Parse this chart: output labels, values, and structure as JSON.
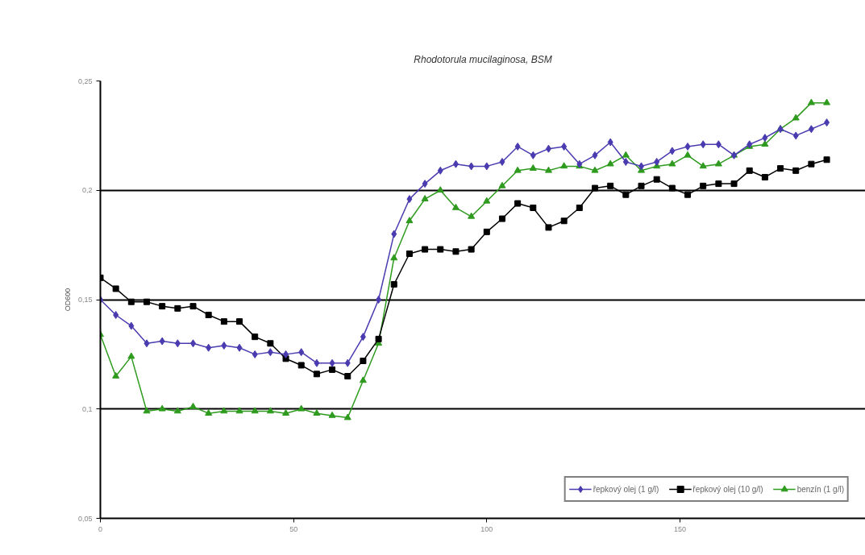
{
  "chart_data": {
    "type": "line",
    "title": "Rhodotorula mucilaginosa, BSM",
    "ylabel": "OD600",
    "x": [
      0,
      4,
      8,
      12,
      16,
      20,
      24,
      28,
      32,
      36,
      40,
      44,
      48,
      52,
      56,
      60,
      64,
      68,
      72,
      76,
      80,
      84,
      88,
      92,
      96,
      100,
      104,
      108,
      112,
      116,
      120,
      124,
      128,
      132,
      136,
      140,
      144,
      148,
      152,
      156,
      160,
      164,
      168,
      172,
      176,
      180,
      184,
      188
    ],
    "series": [
      {
        "name": "řepkový olej (1 g/l)",
        "color": "#4a3cb0",
        "marker": "diamond",
        "values": [
          0.15,
          0.143,
          0.138,
          0.13,
          0.131,
          0.13,
          0.13,
          0.128,
          0.129,
          0.128,
          0.125,
          0.126,
          0.125,
          0.126,
          0.121,
          0.121,
          0.121,
          0.133,
          0.15,
          0.18,
          0.196,
          0.203,
          0.209,
          0.212,
          0.211,
          0.211,
          0.213,
          0.22,
          0.216,
          0.219,
          0.22,
          0.212,
          0.216,
          0.222,
          0.213,
          0.211,
          0.213,
          0.218,
          0.22,
          0.221,
          0.221,
          0.216,
          0.221,
          0.224,
          0.228,
          0.225,
          0.228,
          0.231
        ]
      },
      {
        "name": "řepkový olej (10 g/l)",
        "color": "#000000",
        "marker": "square",
        "values": [
          0.16,
          0.155,
          0.149,
          0.149,
          0.147,
          0.146,
          0.147,
          0.143,
          0.14,
          0.14,
          0.133,
          0.13,
          0.123,
          0.12,
          0.116,
          0.118,
          0.115,
          0.122,
          0.132,
          0.157,
          0.171,
          0.173,
          0.173,
          0.172,
          0.173,
          0.181,
          0.187,
          0.194,
          0.192,
          0.183,
          0.186,
          0.192,
          0.201,
          0.202,
          0.198,
          0.202,
          0.205,
          0.201,
          0.198,
          0.202,
          0.203,
          0.203,
          0.209,
          0.206,
          0.21,
          0.209,
          0.212,
          0.214
        ]
      },
      {
        "name": "benzín (1 g/l)",
        "color": "#2e9a1e",
        "marker": "triangle",
        "values": [
          0.134,
          0.115,
          0.124,
          0.099,
          0.1,
          0.099,
          0.101,
          0.098,
          0.099,
          0.099,
          0.099,
          0.099,
          0.098,
          0.1,
          0.098,
          0.097,
          0.096,
          0.113,
          0.13,
          0.169,
          0.186,
          0.196,
          0.2,
          0.192,
          0.188,
          0.195,
          0.202,
          0.209,
          0.21,
          0.209,
          0.211,
          0.211,
          0.209,
          0.212,
          0.216,
          0.209,
          0.211,
          0.212,
          0.216,
          0.211,
          0.212,
          0.216,
          0.22,
          0.221,
          0.228,
          0.233,
          0.24,
          0.24
        ]
      }
    ],
    "xlim": [
      0,
      198
    ],
    "xticks": [
      0,
      50,
      100,
      150
    ],
    "ylim": [
      0.05,
      0.25
    ],
    "yticks": [
      {
        "value": 0.05,
        "label": "0,05"
      },
      {
        "value": 0.1,
        "label": "0,1"
      },
      {
        "value": 0.15,
        "label": "0,15"
      },
      {
        "value": 0.2,
        "label": "0,2"
      },
      {
        "value": 0.25,
        "label": "0,25"
      }
    ],
    "grid": "y",
    "legend": "bottom right",
    "line_style": "solid"
  }
}
